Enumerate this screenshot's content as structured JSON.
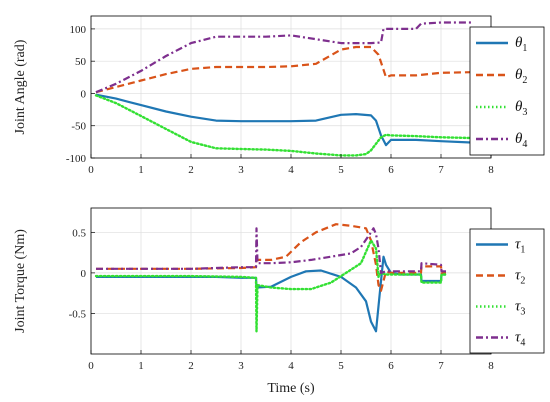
{
  "colors": {
    "s1": "#1f77b4",
    "s2": "#d95319",
    "s3": "#33e033",
    "s4": "#7e2f8e",
    "grid": "#dddddd",
    "axis": "#000000"
  },
  "chart_data": [
    {
      "type": "line",
      "title": "",
      "xlabel": "",
      "ylabel": "Joint Angle (rad)",
      "xlim": [
        0,
        8
      ],
      "ylim": [
        -100,
        120
      ],
      "xticks": [
        "0",
        "1",
        "2",
        "3",
        "4",
        "5",
        "6",
        "7",
        "8"
      ],
      "yticks": [
        "-100",
        "-50",
        "0",
        "50",
        "100"
      ],
      "grid": true,
      "legend_position": "right",
      "series": [
        {
          "name": "θ1",
          "label_main": "θ",
          "label_sub": "1",
          "style": "solid",
          "x": [
            0.1,
            0.5,
            1.0,
            1.5,
            2.0,
            2.5,
            3.0,
            3.5,
            4.0,
            4.5,
            5.0,
            5.3,
            5.6,
            5.7,
            5.8,
            5.9,
            6.0,
            6.5,
            7.0,
            7.6
          ],
          "y": [
            -2,
            -8,
            -18,
            -28,
            -36,
            -42,
            -43,
            -43,
            -43,
            -42,
            -33,
            -32,
            -34,
            -42,
            -65,
            -80,
            -72,
            -72,
            -74,
            -76
          ]
        },
        {
          "name": "θ2",
          "label_main": "θ",
          "label_sub": "2",
          "style": "dashed",
          "x": [
            0.1,
            0.5,
            1.0,
            1.5,
            2.0,
            2.5,
            3.0,
            3.5,
            4.0,
            4.5,
            5.0,
            5.3,
            5.6,
            5.75,
            5.9,
            6.0,
            6.5,
            7.0,
            7.6
          ],
          "y": [
            2,
            10,
            20,
            30,
            38,
            41,
            41,
            41,
            42,
            46,
            68,
            72,
            72,
            60,
            25,
            28,
            28,
            32,
            33
          ]
        },
        {
          "name": "θ3",
          "label_main": "θ",
          "label_sub": "3",
          "style": "dotted",
          "x": [
            0.1,
            0.5,
            1.0,
            1.5,
            2.0,
            2.5,
            3.0,
            3.5,
            4.0,
            4.5,
            5.0,
            5.3,
            5.5,
            5.6,
            5.7,
            5.8,
            5.9,
            6.0,
            6.5,
            7.0,
            7.6
          ],
          "y": [
            -3,
            -15,
            -35,
            -55,
            -75,
            -85,
            -86,
            -87,
            -89,
            -93,
            -96,
            -96,
            -94,
            -88,
            -78,
            -68,
            -64,
            -65,
            -66,
            -68,
            -69
          ]
        },
        {
          "name": "θ4",
          "label_main": "θ",
          "label_sub": "4",
          "style": "dashdot",
          "x": [
            0.1,
            0.5,
            1.0,
            1.5,
            2.0,
            2.5,
            3.0,
            3.5,
            4.0,
            4.5,
            5.0,
            5.3,
            5.6,
            5.8,
            5.85,
            6.0,
            6.5,
            6.6,
            7.0,
            7.6
          ],
          "y": [
            2,
            15,
            35,
            58,
            78,
            88,
            88,
            88,
            90,
            84,
            78,
            78,
            78,
            79,
            100,
            100,
            100,
            108,
            110,
            110
          ]
        }
      ]
    },
    {
      "type": "line",
      "title": "",
      "xlabel": "Time (s)",
      "ylabel": "Joint Torque (Nm)",
      "xlim": [
        0,
        8
      ],
      "ylim": [
        -1,
        0.8
      ],
      "xticks": [
        "0",
        "1",
        "2",
        "3",
        "4",
        "5",
        "6",
        "7",
        "8"
      ],
      "yticks": [
        "-0.5",
        "0",
        "0.5"
      ],
      "grid": true,
      "legend_position": "right",
      "series": [
        {
          "name": "τ1",
          "label_main": "τ",
          "label_sub": "1",
          "style": "solid",
          "x": [
            0.1,
            1.0,
            2.0,
            2.5,
            3.0,
            3.3,
            3.31,
            3.6,
            4.0,
            4.3,
            4.6,
            5.0,
            5.3,
            5.5,
            5.6,
            5.7,
            5.8,
            5.85,
            5.9,
            6.0,
            6.2,
            6.5,
            6.6,
            6.61,
            7.0,
            7.01,
            7.1
          ],
          "y": [
            -0.05,
            -0.05,
            -0.05,
            -0.05,
            -0.06,
            -0.06,
            -0.18,
            -0.17,
            -0.05,
            0.02,
            0.03,
            -0.05,
            -0.18,
            -0.35,
            -0.6,
            -0.72,
            -0.1,
            0.2,
            0.1,
            0.0,
            -0.02,
            -0.02,
            -0.02,
            -0.1,
            -0.1,
            -0.02,
            -0.02
          ]
        },
        {
          "name": "τ2",
          "label_main": "τ",
          "label_sub": "2",
          "style": "dashed",
          "x": [
            0.1,
            1.0,
            2.0,
            3.0,
            3.3,
            3.31,
            3.6,
            3.9,
            4.2,
            4.5,
            4.9,
            5.2,
            5.5,
            5.6,
            5.7,
            5.75,
            5.8,
            5.9,
            6.0,
            6.5,
            6.6,
            6.61,
            7.0,
            7.01,
            7.1
          ],
          "y": [
            0.05,
            0.05,
            0.05,
            0.06,
            0.07,
            0.16,
            0.16,
            0.2,
            0.38,
            0.5,
            0.6,
            0.58,
            0.55,
            0.4,
            0.1,
            -0.15,
            -0.22,
            0.02,
            0.0,
            0.0,
            0.0,
            0.08,
            0.08,
            0.0,
            0.0
          ]
        },
        {
          "name": "τ3",
          "label_main": "τ",
          "label_sub": "3",
          "style": "dotted",
          "x": [
            0.1,
            1.0,
            2.0,
            3.0,
            3.3,
            3.31,
            3.33,
            3.6,
            4.0,
            4.4,
            4.8,
            5.1,
            5.4,
            5.6,
            5.7,
            5.75,
            5.8,
            5.9,
            6.0,
            6.5,
            6.6,
            6.61,
            7.0,
            7.01,
            7.1
          ],
          "y": [
            -0.04,
            -0.04,
            -0.04,
            -0.05,
            -0.06,
            -0.72,
            -0.15,
            -0.18,
            -0.2,
            -0.2,
            -0.12,
            0.0,
            0.12,
            0.4,
            0.3,
            -0.05,
            0.0,
            -0.02,
            -0.02,
            -0.02,
            -0.02,
            -0.12,
            -0.12,
            -0.02,
            -0.02
          ]
        },
        {
          "name": "τ4",
          "label_main": "τ",
          "label_sub": "4",
          "style": "dashdot",
          "x": [
            0.1,
            1.0,
            2.0,
            3.0,
            3.3,
            3.31,
            3.33,
            3.6,
            4.0,
            4.4,
            4.8,
            5.2,
            5.4,
            5.6,
            5.65,
            5.7,
            5.75,
            5.8,
            5.9,
            6.0,
            6.5,
            6.6,
            6.61,
            7.0,
            7.01,
            7.1
          ],
          "y": [
            0.05,
            0.05,
            0.05,
            0.07,
            0.07,
            0.55,
            0.12,
            0.12,
            0.13,
            0.16,
            0.2,
            0.24,
            0.32,
            0.5,
            0.55,
            0.48,
            0.3,
            0.0,
            0.02,
            0.02,
            0.02,
            0.02,
            0.12,
            0.1,
            0.02,
            0.02
          ]
        }
      ]
    }
  ]
}
